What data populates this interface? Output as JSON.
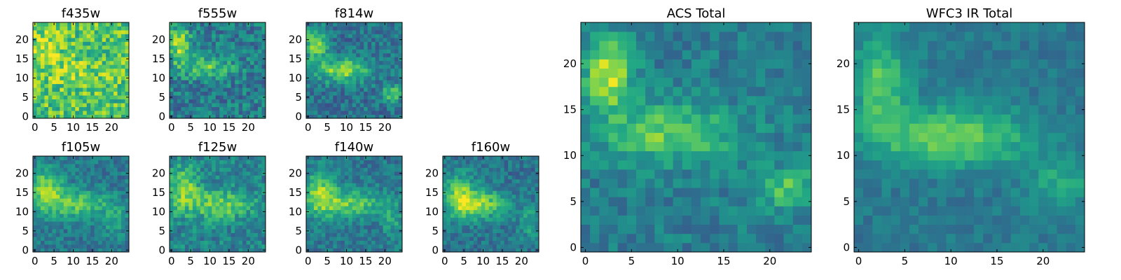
{
  "chart_data": {
    "type": "heatmap",
    "colormap": "viridis",
    "grid_size": [
      25,
      25
    ],
    "panels": [
      {
        "title": "f435w",
        "xlim": [
          0,
          24
        ],
        "ylim": [
          0,
          24
        ],
        "xticks": [
          0,
          5,
          10,
          15,
          20
        ],
        "yticks": [
          0,
          5,
          10,
          15,
          20
        ],
        "features": [
          {
            "x": 3,
            "y": 18,
            "sx": 2.5,
            "sy": 4,
            "amp": 0.15
          },
          {
            "x": 10,
            "y": 12,
            "sx": 6,
            "sy": 3,
            "amp": 0.1
          }
        ],
        "base": 0.72,
        "noise": 0.42,
        "seed": 11
      },
      {
        "title": "f555w",
        "xlim": [
          0,
          24
        ],
        "ylim": [
          0,
          24
        ],
        "xticks": [
          0,
          5,
          10,
          15,
          20
        ],
        "yticks": [
          0,
          5,
          10,
          15,
          20
        ],
        "features": [
          {
            "x": 2,
            "y": 19,
            "sx": 2,
            "sy": 3.5,
            "amp": 0.45
          },
          {
            "x": 9,
            "y": 13,
            "sx": 5,
            "sy": 2,
            "amp": 0.3
          }
        ],
        "base": 0.42,
        "noise": 0.35,
        "seed": 22
      },
      {
        "title": "f814w",
        "xlim": [
          0,
          24
        ],
        "ylim": [
          0,
          24
        ],
        "xticks": [
          0,
          5,
          10,
          15,
          20
        ],
        "yticks": [
          0,
          5,
          10,
          15,
          20
        ],
        "features": [
          {
            "x": 2,
            "y": 19,
            "sx": 2,
            "sy": 3,
            "amp": 0.45
          },
          {
            "x": 9,
            "y": 12,
            "sx": 5,
            "sy": 2.2,
            "amp": 0.45
          },
          {
            "x": 22,
            "y": 6,
            "sx": 2,
            "sy": 1.5,
            "amp": 0.35
          }
        ],
        "base": 0.38,
        "noise": 0.3,
        "seed": 33
      },
      {
        "title": "f105w",
        "xlim": [
          0,
          24
        ],
        "ylim": [
          0,
          24
        ],
        "xticks": [
          0,
          5,
          10,
          15,
          20
        ],
        "yticks": [
          0,
          5,
          10,
          15,
          20
        ],
        "features": [
          {
            "x": 3,
            "y": 16,
            "sx": 3,
            "sy": 4,
            "amp": 0.4
          },
          {
            "x": 11,
            "y": 12,
            "sx": 6,
            "sy": 2.5,
            "amp": 0.35
          },
          {
            "x": 21,
            "y": 8,
            "sx": 2,
            "sy": 3,
            "amp": 0.2
          }
        ],
        "base": 0.4,
        "noise": 0.25,
        "seed": 44
      },
      {
        "title": "f125w",
        "xlim": [
          0,
          24
        ],
        "ylim": [
          0,
          24
        ],
        "xticks": [
          0,
          5,
          10,
          15,
          20
        ],
        "yticks": [
          0,
          5,
          10,
          15,
          20
        ],
        "features": [
          {
            "x": 3,
            "y": 16,
            "sx": 3,
            "sy": 4,
            "amp": 0.35
          },
          {
            "x": 13,
            "y": 12,
            "sx": 6,
            "sy": 2.5,
            "amp": 0.35
          }
        ],
        "base": 0.45,
        "noise": 0.3,
        "seed": 55
      },
      {
        "title": "f140w",
        "xlim": [
          0,
          24
        ],
        "ylim": [
          0,
          24
        ],
        "xticks": [
          0,
          5,
          10,
          15,
          20
        ],
        "yticks": [
          0,
          5,
          10,
          15,
          20
        ],
        "features": [
          {
            "x": 3,
            "y": 15,
            "sx": 3,
            "sy": 4,
            "amp": 0.4
          },
          {
            "x": 11,
            "y": 12,
            "sx": 6,
            "sy": 2.5,
            "amp": 0.35
          },
          {
            "x": 22,
            "y": 8,
            "sx": 2,
            "sy": 3,
            "amp": 0.2
          }
        ],
        "base": 0.4,
        "noise": 0.25,
        "seed": 66
      },
      {
        "title": "f160w",
        "xlim": [
          0,
          24
        ],
        "ylim": [
          0,
          24
        ],
        "xticks": [
          0,
          5,
          10,
          15,
          20
        ],
        "yticks": [
          0,
          5,
          10,
          15,
          20
        ],
        "features": [
          {
            "x": 4,
            "y": 14,
            "sx": 3,
            "sy": 4,
            "amp": 0.4
          },
          {
            "x": 10,
            "y": 12,
            "sx": 5,
            "sy": 2.5,
            "amp": 0.4
          },
          {
            "x": 22,
            "y": 7,
            "sx": 2,
            "sy": 3,
            "amp": 0.2
          }
        ],
        "base": 0.38,
        "noise": 0.25,
        "seed": 77
      },
      {
        "title": "ACS Total",
        "xlim": [
          0,
          24
        ],
        "ylim": [
          0,
          24
        ],
        "xticks": [
          0,
          5,
          10,
          15,
          20
        ],
        "yticks": [
          0,
          5,
          10,
          15,
          20
        ],
        "features": [
          {
            "x": 2.5,
            "y": 19,
            "sx": 1.8,
            "sy": 2.8,
            "amp": 0.5
          },
          {
            "x": 9,
            "y": 12.5,
            "sx": 5,
            "sy": 2.2,
            "amp": 0.35
          },
          {
            "x": 22,
            "y": 6.5,
            "sx": 2.5,
            "sy": 1.5,
            "amp": 0.3
          }
        ],
        "base": 0.42,
        "noise": 0.22,
        "seed": 88
      },
      {
        "title": "WFC3 IR Total",
        "xlim": [
          0,
          24
        ],
        "ylim": [
          0,
          24
        ],
        "xticks": [
          0,
          5,
          10,
          15,
          20
        ],
        "yticks": [
          0,
          5,
          10,
          15,
          20
        ],
        "features": [
          {
            "x": 2.5,
            "y": 18,
            "sx": 2,
            "sy": 3.5,
            "amp": 0.35
          },
          {
            "x": 10,
            "y": 12,
            "sx": 6,
            "sy": 2.2,
            "amp": 0.4
          },
          {
            "x": 22,
            "y": 7,
            "sx": 2.5,
            "sy": 2,
            "amp": 0.2
          }
        ],
        "base": 0.4,
        "noise": 0.15,
        "seed": 99
      }
    ]
  }
}
